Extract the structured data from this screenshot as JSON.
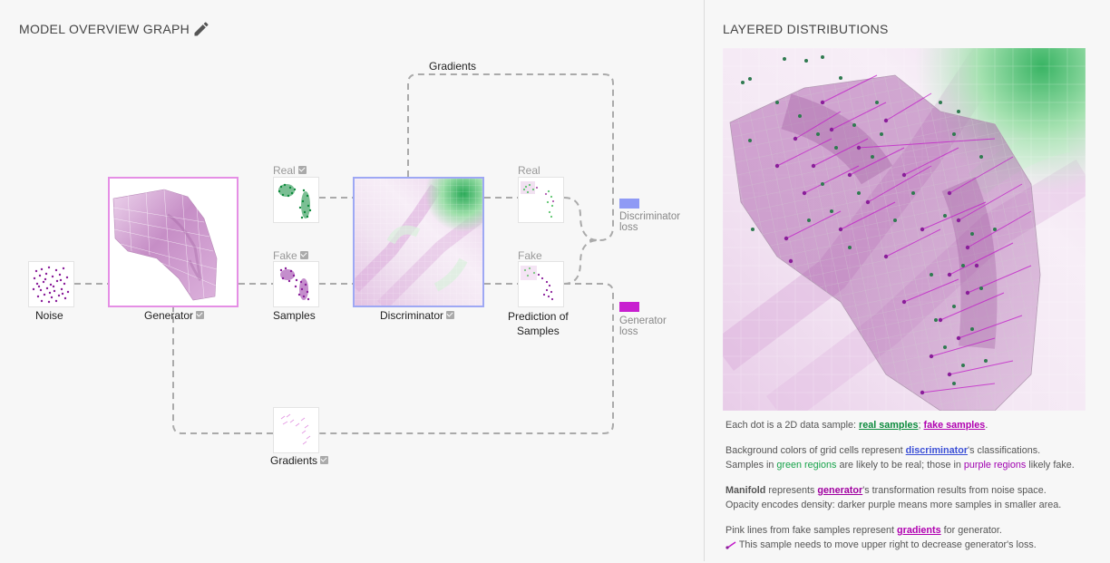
{
  "left": {
    "title": "MODEL OVERVIEW GRAPH",
    "top_gradients": "Gradients",
    "noise": "Noise",
    "generator": "Generator",
    "samples": "Samples",
    "discriminator": "Discriminator",
    "prediction_line1": "Prediction of",
    "prediction_line2": "Samples",
    "real": "Real",
    "fake": "Fake",
    "pred_real": "Real",
    "pred_fake": "Fake",
    "disc_loss_1": "Discriminator",
    "disc_loss_2": "loss",
    "gen_loss_1": "Generator",
    "gen_loss_2": "loss",
    "bottom_gradients": "Gradients",
    "colors": {
      "disc_loss": "#8f9af5",
      "gen_loss": "#c81fd0",
      "generator_border": "#e58fe5",
      "discriminator_border": "#9ea8f4"
    }
  },
  "right": {
    "title": "LAYERED DISTRIBUTIONS",
    "p1": {
      "a": "Each dot is a 2D data sample: ",
      "real": "real samples",
      "sep": "; ",
      "fake": "fake samples",
      "end": "."
    },
    "p2": {
      "a": "Background colors of grid cells represent ",
      "disc": "discriminator",
      "b": "'s classifications.",
      "c": "Samples in ",
      "green": "green regions",
      "d": " are likely to be real; those in ",
      "purple": "purple regions",
      "e": " likely fake."
    },
    "p3": {
      "bold": "Manifold",
      "a": " represents ",
      "gen": "generator",
      "b": "'s transformation results from noise space.",
      "c": "Opacity encodes density: darker purple means more samples in smaller area."
    },
    "p4": {
      "a": "Pink lines from fake samples represent ",
      "grad": "gradients",
      "b": " for generator.",
      "c": "This sample needs to move upper right to decrease generator's loss."
    }
  }
}
